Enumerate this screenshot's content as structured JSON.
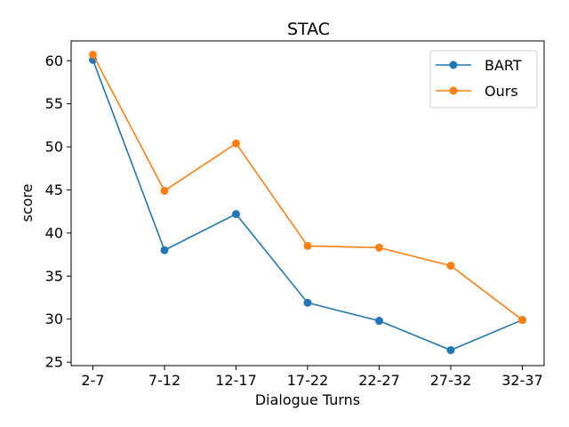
{
  "chart_data": {
    "type": "line",
    "title": "STAC",
    "xlabel": "Dialogue Turns",
    "ylabel": "score",
    "categories": [
      "2-7",
      "7-12",
      "12-17",
      "17-22",
      "22-27",
      "27-32",
      "32-37"
    ],
    "y_ticks": [
      25,
      30,
      35,
      40,
      45,
      50,
      55,
      60
    ],
    "ylim": [
      24.6,
      62.3
    ],
    "grid": false,
    "legend_position": "top-right",
    "series": [
      {
        "name": "BART",
        "color": "#1f77b4",
        "marker": "circle",
        "values": [
          60.1,
          38.0,
          42.2,
          31.9,
          29.8,
          26.4,
          29.9
        ]
      },
      {
        "name": "Ours",
        "color": "#ff7f0e",
        "marker": "circle",
        "values": [
          60.7,
          44.9,
          50.4,
          38.5,
          38.3,
          36.2,
          29.9
        ]
      }
    ]
  }
}
